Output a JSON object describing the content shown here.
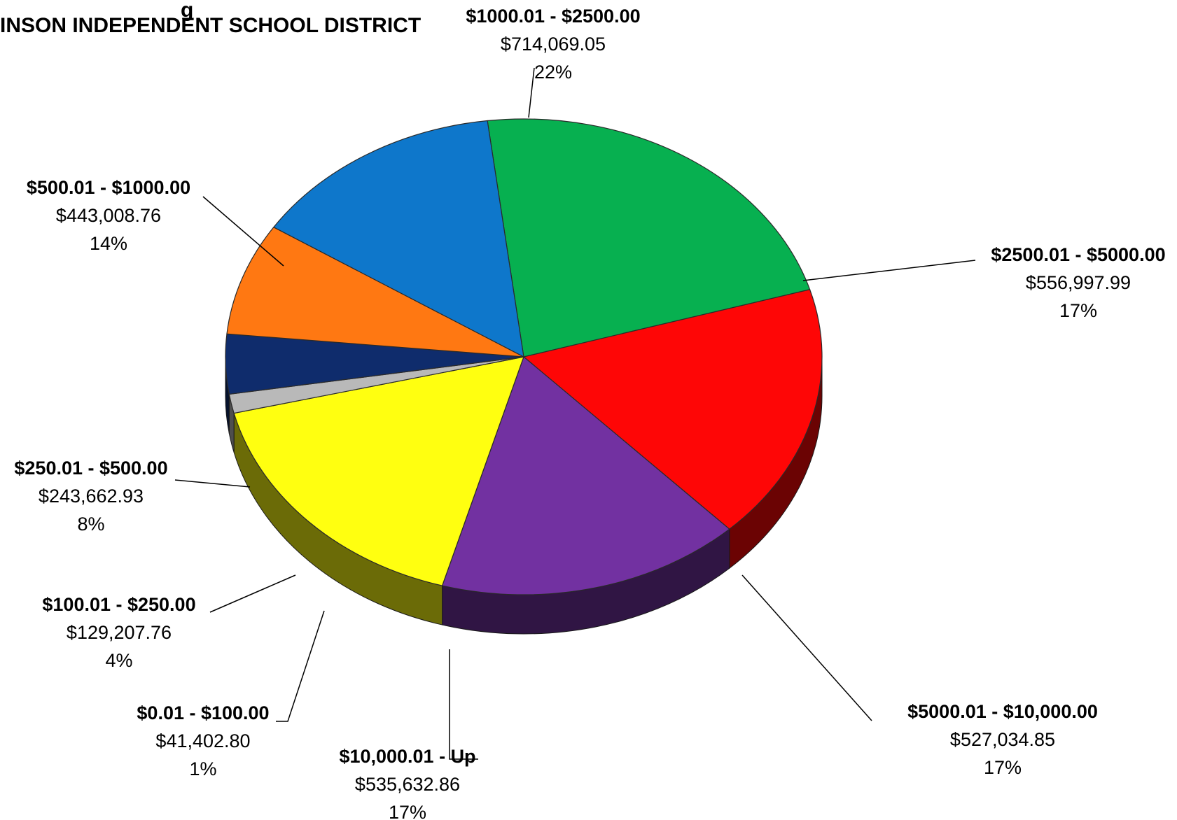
{
  "chart_data": {
    "type": "pie",
    "title_lines": [
      "g",
      "INSON INDEPENDENT SCHOOL DISTRICT"
    ],
    "slices": [
      {
        "name": "$1000.01 - $2500.00",
        "value": 714069.05,
        "value_text": "$714,069.05",
        "percent_text": "22%",
        "color": "#07B050"
      },
      {
        "name": "$2500.01 - $5000.00",
        "value": 556997.99,
        "value_text": "$556,997.99",
        "percent_text": "17%",
        "color": "#FE0606"
      },
      {
        "name": "$5000.01 - $10,000.00",
        "value": 527034.85,
        "value_text": "$527,034.85",
        "percent_text": "17%",
        "color": "#7231A1"
      },
      {
        "name": "$10,000.01 - Up",
        "value": 535632.86,
        "value_text": "$535,632.86",
        "percent_text": "17%",
        "color": "#FFFF10"
      },
      {
        "name": "$0.01 - $100.00",
        "value": 41402.8,
        "value_text": "$41,402.80",
        "percent_text": "1%",
        "color": "#B9B9B9"
      },
      {
        "name": "$100.01 - $250.00",
        "value": 129207.76,
        "value_text": "$129,207.76",
        "percent_text": "4%",
        "color": "#0F2C6C"
      },
      {
        "name": "$250.01 - $500.00",
        "value": 243662.93,
        "value_text": "$243,662.93",
        "percent_text": "8%",
        "color": "#FF7812"
      },
      {
        "name": "$500.01 - $1000.00",
        "value": 443008.76,
        "value_text": "$443,008.76",
        "percent_text": "14%",
        "color": "#0E77CB"
      }
    ]
  }
}
